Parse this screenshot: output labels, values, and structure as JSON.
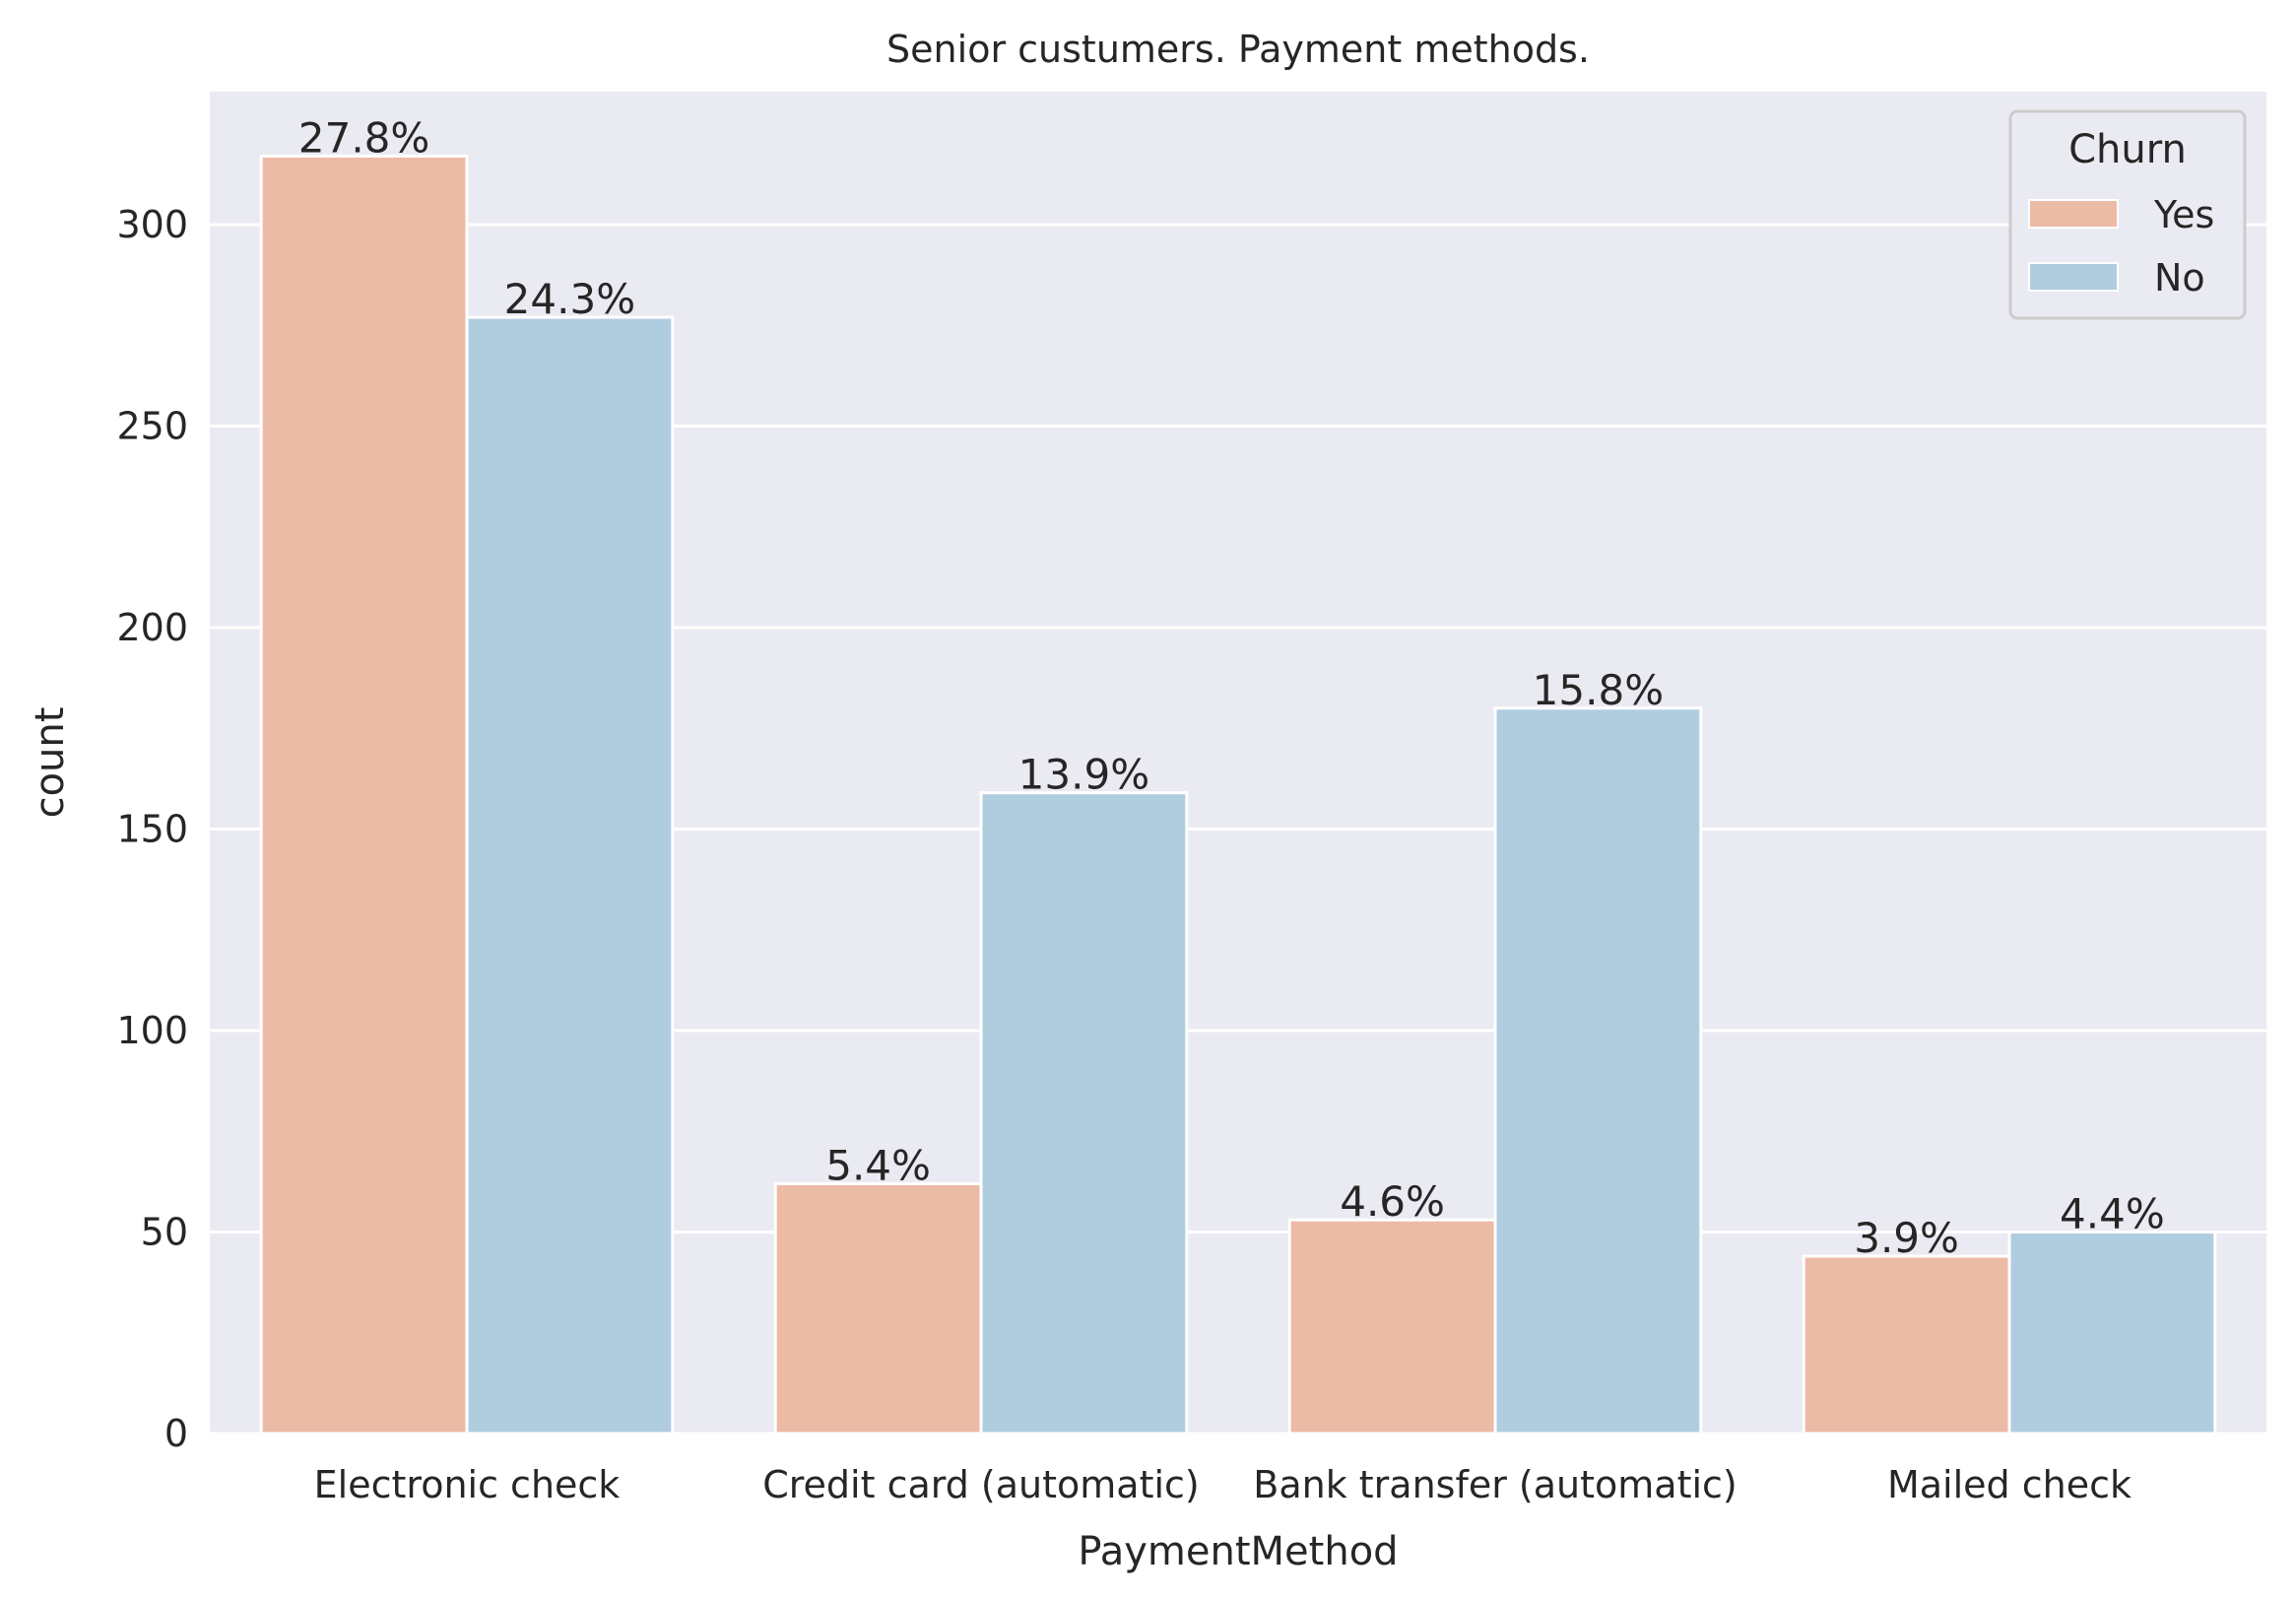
{
  "chart_data": {
    "type": "bar",
    "title": "Senior custumers. Payment methods.",
    "xlabel": "PaymentMethod",
    "ylabel": "count",
    "ylim": [
      0,
      333
    ],
    "yticks": [
      0,
      50,
      100,
      150,
      200,
      250,
      300
    ],
    "grid": true,
    "categories": [
      "Electronic check",
      "Credit card (automatic)",
      "Bank transfer (automatic)",
      "Mailed check"
    ],
    "series": [
      {
        "name": "Yes",
        "color": "#ebbba6",
        "values": [
          317,
          62,
          53,
          44
        ],
        "labels": [
          "27.8%",
          "5.4%",
          "4.6%",
          "3.9%"
        ]
      },
      {
        "name": "No",
        "color": "#b0cde0",
        "values": [
          277,
          159,
          180,
          50
        ],
        "labels": [
          "24.3%",
          "13.9%",
          "15.8%",
          "4.4%"
        ]
      }
    ],
    "legend": {
      "title": "Churn",
      "placement": "top-right"
    },
    "colors": {
      "plot_bg": "#eaeaf2",
      "grid": "#ffffff",
      "text": "#262626"
    }
  }
}
